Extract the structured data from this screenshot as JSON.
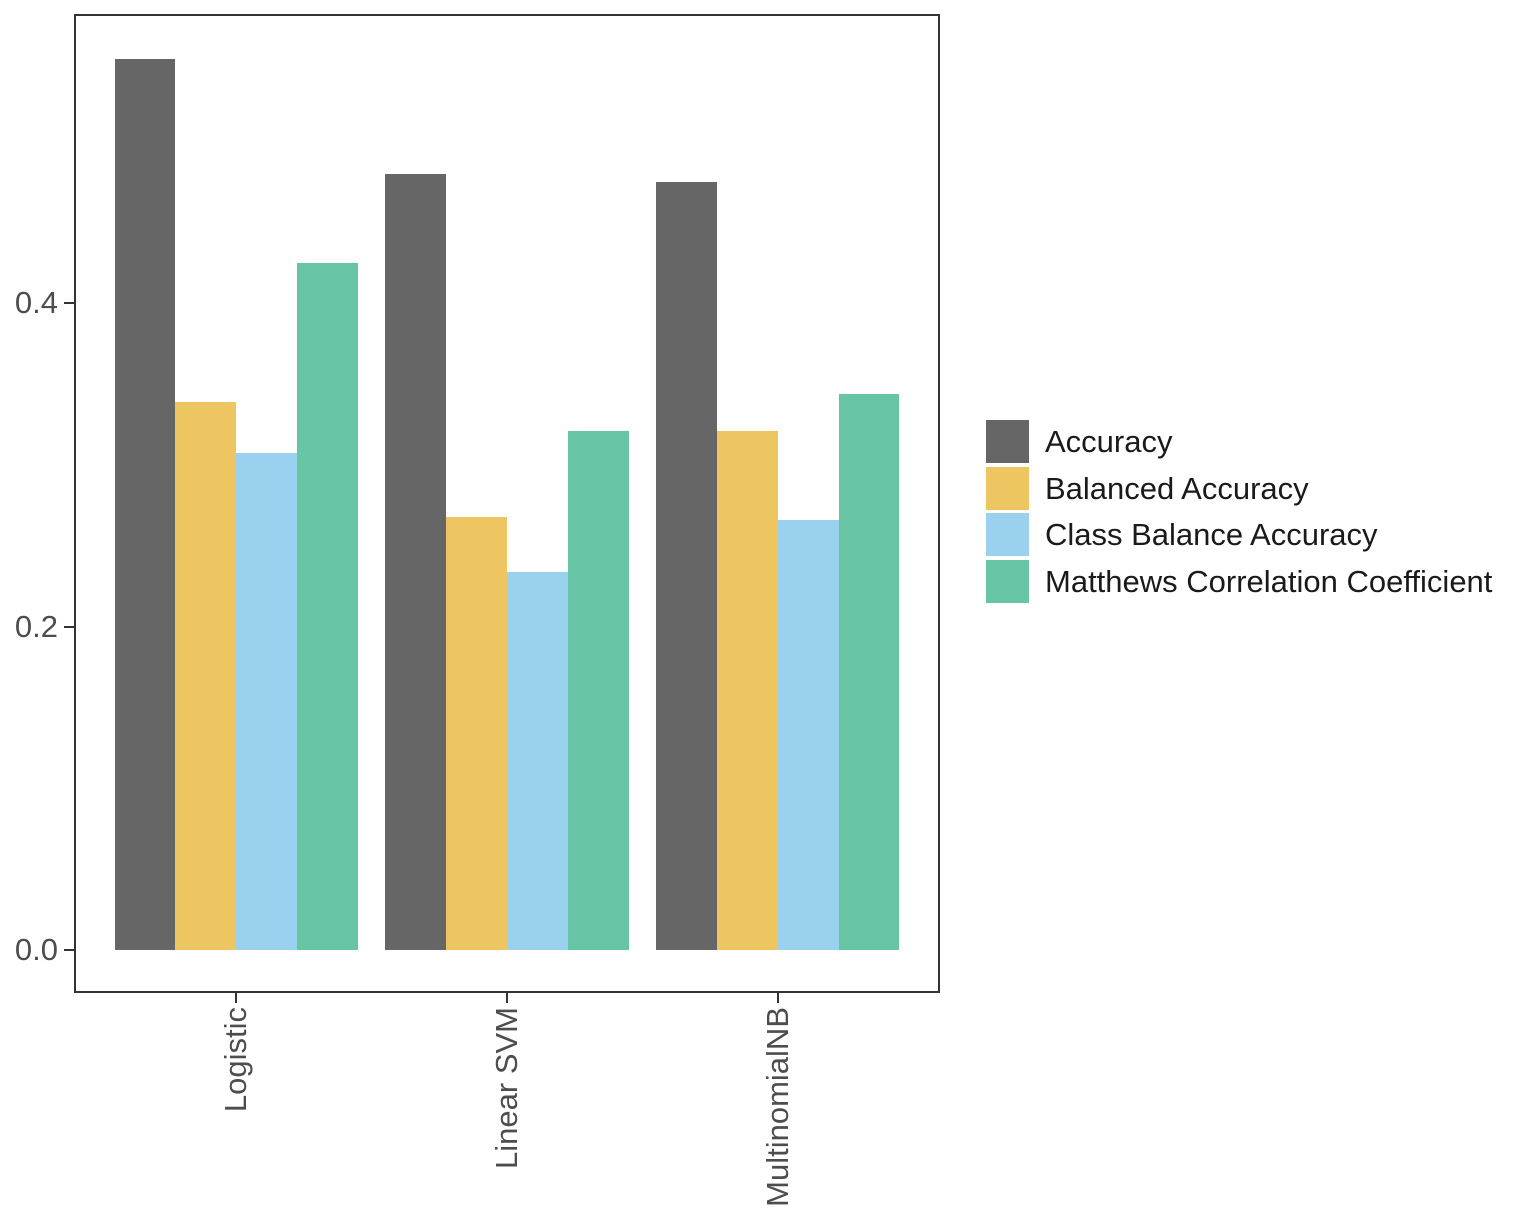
{
  "chart_data": {
    "type": "bar",
    "title": "",
    "xlabel": "",
    "ylabel": "",
    "categories": [
      "Logistic",
      "Linear SVM",
      "MultinomialNB"
    ],
    "series": [
      {
        "name": "Accuracy",
        "color": "#666666",
        "values": [
          0.551,
          0.48,
          0.475
        ]
      },
      {
        "name": "Balanced Accuracy",
        "color": "#EDC561",
        "values": [
          0.339,
          0.268,
          0.321
        ]
      },
      {
        "name": "Class Balance Accuracy",
        "color": "#9AD1EE",
        "values": [
          0.307,
          0.234,
          0.266
        ]
      },
      {
        "name": "Matthews Correlation Coefficient",
        "color": "#67C5A6",
        "values": [
          0.425,
          0.321,
          0.344
        ]
      }
    ],
    "y_ticks": [
      {
        "label": "0.0",
        "value": 0.0
      },
      {
        "label": "0.2",
        "value": 0.2
      },
      {
        "label": "0.4",
        "value": 0.4
      }
    ],
    "ylim": [
      -0.027,
      0.579
    ],
    "grid": false,
    "legend_position": "right",
    "colors": {
      "panel_border": "#333333",
      "tick_mark": "#333333",
      "axis_text": "#4d4d4d",
      "legend_text": "#1a1a1a",
      "background": "#ffffff"
    }
  }
}
